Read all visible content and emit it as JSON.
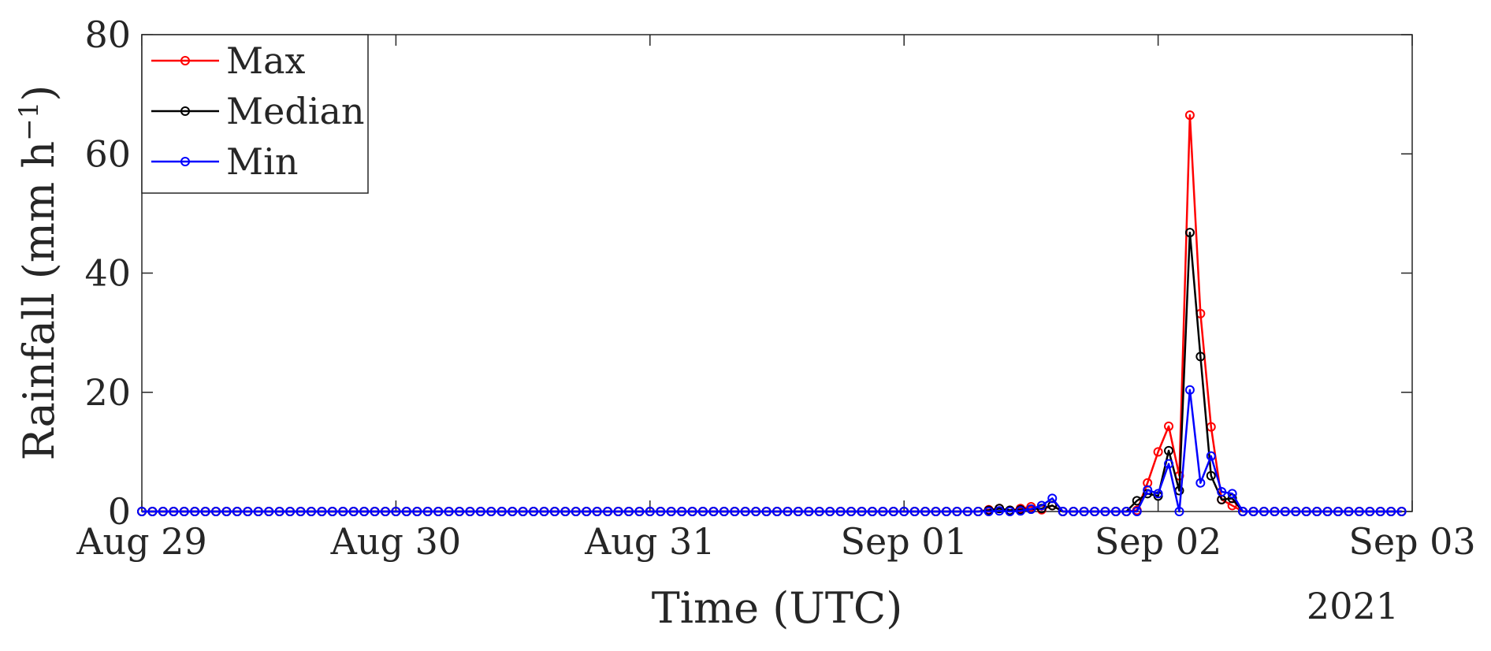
{
  "chart_data": {
    "type": "line",
    "title": "",
    "xlabel": "Time (UTC)",
    "ylabel": "Rainfall (mm h",
    "ylabel_superscript": "−1",
    "ylabel_close": ")",
    "year_label": "2021",
    "xlim": [
      "2021-08-29 00:00",
      "2021-09-03 00:00"
    ],
    "ylim": [
      0,
      80
    ],
    "yticks": [
      0,
      20,
      40,
      60,
      80
    ],
    "xticks": [
      {
        "t": "2021-08-29 00:00",
        "label": "Aug 29"
      },
      {
        "t": "2021-08-30 00:00",
        "label": "Aug 30"
      },
      {
        "t": "2021-08-31 00:00",
        "label": "Aug 31"
      },
      {
        "t": "2021-09-01 00:00",
        "label": "Sep 01"
      },
      {
        "t": "2021-09-02 00:00",
        "label": "Sep 02"
      },
      {
        "t": "2021-09-03 00:00",
        "label": "Sep 03"
      }
    ],
    "x_start": "2021-08-29 00:00",
    "x_step_hours": 1,
    "legend_position": "top-left",
    "grid": false,
    "marker": "open-circle",
    "series": [
      {
        "name": "Max",
        "color": "#ff0000",
        "values": [
          0,
          0,
          0,
          0,
          0,
          0,
          0,
          0,
          0,
          0,
          0,
          0,
          0,
          0,
          0,
          0,
          0,
          0,
          0,
          0,
          0,
          0,
          0,
          0,
          0,
          0,
          0,
          0,
          0,
          0,
          0,
          0,
          0,
          0,
          0,
          0,
          0,
          0,
          0,
          0,
          0,
          0,
          0,
          0,
          0,
          0,
          0,
          0,
          0,
          0,
          0,
          0,
          0,
          0,
          0,
          0,
          0,
          0,
          0,
          0,
          0,
          0,
          0,
          0,
          0,
          0,
          0,
          0,
          0,
          0,
          0,
          0,
          0,
          0,
          0,
          0,
          0,
          0,
          0,
          0,
          0.3,
          0.5,
          0.2,
          0.5,
          0.8,
          0.3,
          1.0,
          0.0,
          0,
          0,
          0,
          0,
          0,
          0,
          0.2,
          4.8,
          10.0,
          14.3,
          6.0,
          66.5,
          33.2,
          14.2,
          2.0,
          1.0,
          0,
          0,
          0,
          0,
          0,
          0,
          0,
          0,
          0,
          0,
          0,
          0,
          0,
          0,
          0,
          0
        ]
      },
      {
        "name": "Median",
        "color": "#000000",
        "values": [
          0,
          0,
          0,
          0,
          0,
          0,
          0,
          0,
          0,
          0,
          0,
          0,
          0,
          0,
          0,
          0,
          0,
          0,
          0,
          0,
          0,
          0,
          0,
          0,
          0,
          0,
          0,
          0,
          0,
          0,
          0,
          0,
          0,
          0,
          0,
          0,
          0,
          0,
          0,
          0,
          0,
          0,
          0,
          0,
          0,
          0,
          0,
          0,
          0,
          0,
          0,
          0,
          0,
          0,
          0,
          0,
          0,
          0,
          0,
          0,
          0,
          0,
          0,
          0,
          0,
          0,
          0,
          0,
          0,
          0,
          0,
          0,
          0,
          0,
          0,
          0,
          0,
          0,
          0,
          0,
          0.2,
          0.5,
          0.2,
          0.3,
          0.4,
          0.5,
          1.0,
          0.0,
          0,
          0,
          0,
          0,
          0,
          0,
          1.8,
          3.0,
          2.6,
          10.2,
          3.5,
          46.8,
          26.0,
          6.0,
          2.0,
          2.2,
          0,
          0,
          0,
          0,
          0,
          0,
          0,
          0,
          0,
          0,
          0,
          0,
          0,
          0,
          0,
          0
        ]
      },
      {
        "name": "Min",
        "color": "#0000ff",
        "values": [
          0,
          0,
          0,
          0,
          0,
          0,
          0,
          0,
          0,
          0,
          0,
          0,
          0,
          0,
          0,
          0,
          0,
          0,
          0,
          0,
          0,
          0,
          0,
          0,
          0,
          0,
          0,
          0,
          0,
          0,
          0,
          0,
          0,
          0,
          0,
          0,
          0,
          0,
          0,
          0,
          0,
          0,
          0,
          0,
          0,
          0,
          0,
          0,
          0,
          0,
          0,
          0,
          0,
          0,
          0,
          0,
          0,
          0,
          0,
          0,
          0,
          0,
          0,
          0,
          0,
          0,
          0,
          0,
          0,
          0,
          0,
          0,
          0,
          0,
          0,
          0,
          0,
          0,
          0,
          0,
          0.0,
          0.1,
          0.0,
          0.1,
          0.4,
          1.0,
          2.2,
          0.0,
          0,
          0,
          0,
          0,
          0,
          0,
          0.0,
          3.6,
          3.0,
          8.0,
          0.0,
          20.4,
          4.8,
          9.3,
          3.3,
          3.0,
          0,
          0,
          0,
          0,
          0,
          0,
          0,
          0,
          0,
          0,
          0,
          0,
          0,
          0,
          0,
          0
        ]
      }
    ]
  }
}
